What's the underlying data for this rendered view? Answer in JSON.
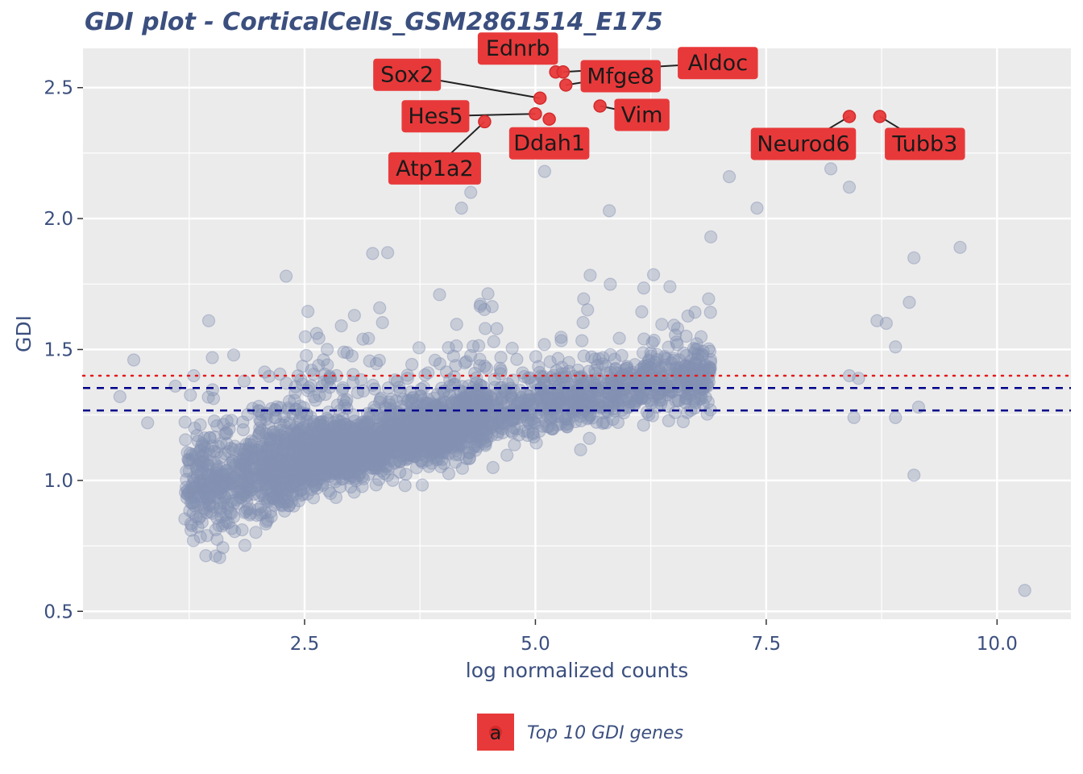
{
  "chart_data": {
    "type": "scatter",
    "title": "GDI plot - CorticalCells_GSM2861514_E175",
    "xlabel": "log normalized counts",
    "ylabel": "GDI",
    "xlim": [
      0.1,
      10.8
    ],
    "ylim": [
      0.47,
      2.65
    ],
    "x_ticks": [
      2.5,
      5.0,
      7.5,
      10.0
    ],
    "x_tick_labels": [
      "2.5",
      "5.0",
      "7.5",
      "10.0"
    ],
    "y_ticks": [
      0.5,
      1.0,
      1.5,
      2.0,
      2.5
    ],
    "y_tick_labels": [
      "0.5",
      "1.0",
      "1.5",
      "2.0",
      "2.5"
    ],
    "grid": true,
    "reference_lines": [
      {
        "y": 1.4,
        "style": "dotted",
        "color": "#e41a1c"
      },
      {
        "y": 1.353,
        "style": "dashed",
        "color": "#00008b"
      },
      {
        "y": 1.267,
        "style": "dashed",
        "color": "#00008b"
      }
    ],
    "background_points": {
      "color": "#8591b3",
      "trend": "GDI rises from about 1.0 at x=1.7 to about 1.40 at x=6.9, with spread up to about 2.2 and down to about 0.75",
      "outliers": [
        [
          0.5,
          1.32
        ],
        [
          0.65,
          1.46
        ],
        [
          0.8,
          1.22
        ],
        [
          1.1,
          1.36
        ],
        [
          1.3,
          1.4
        ],
        [
          2.3,
          1.78
        ],
        [
          3.4,
          1.87
        ],
        [
          3.9,
          2.22
        ],
        [
          4.2,
          2.04
        ],
        [
          4.3,
          2.1
        ],
        [
          5.0,
          2.32
        ],
        [
          5.1,
          2.18
        ],
        [
          5.2,
          2.26
        ],
        [
          5.8,
          2.03
        ],
        [
          6.9,
          1.93
        ],
        [
          7.1,
          2.16
        ],
        [
          7.4,
          2.04
        ],
        [
          7.6,
          2.3
        ],
        [
          8.2,
          2.19
        ],
        [
          8.4,
          2.12
        ],
        [
          8.7,
          1.61
        ],
        [
          8.8,
          1.6
        ],
        [
          8.9,
          1.51
        ],
        [
          9.05,
          1.68
        ],
        [
          9.1,
          1.85
        ],
        [
          9.6,
          1.89
        ],
        [
          8.45,
          1.24
        ],
        [
          8.9,
          1.24
        ],
        [
          9.15,
          1.28
        ],
        [
          9.1,
          1.02
        ],
        [
          10.3,
          0.58
        ],
        [
          8.4,
          1.4
        ],
        [
          8.5,
          1.39
        ]
      ]
    },
    "highlighted_series": {
      "name": "Top 10 GDI genes",
      "color": "#e8393a",
      "points": [
        {
          "gene": "Sox2",
          "x": 5.05,
          "y": 2.46
        },
        {
          "gene": "Ednrb",
          "x": 5.22,
          "y": 2.56
        },
        {
          "gene": "Mfge8",
          "x": 5.33,
          "y": 2.51
        },
        {
          "gene": "Aldoc",
          "x": 5.3,
          "y": 2.56
        },
        {
          "gene": "Hes5",
          "x": 5.0,
          "y": 2.4
        },
        {
          "gene": "Vim",
          "x": 5.7,
          "y": 2.43
        },
        {
          "gene": "Ddah1",
          "x": 5.15,
          "y": 2.38
        },
        {
          "gene": "Atp1a2",
          "x": 4.45,
          "y": 2.37
        },
        {
          "gene": "Neurod6",
          "x": 8.4,
          "y": 2.39
        },
        {
          "gene": "Tubb3",
          "x": 8.73,
          "y": 2.39
        }
      ]
    },
    "legend": {
      "position": "bottom",
      "key_text": "a",
      "label": "Top 10 GDI genes"
    }
  }
}
